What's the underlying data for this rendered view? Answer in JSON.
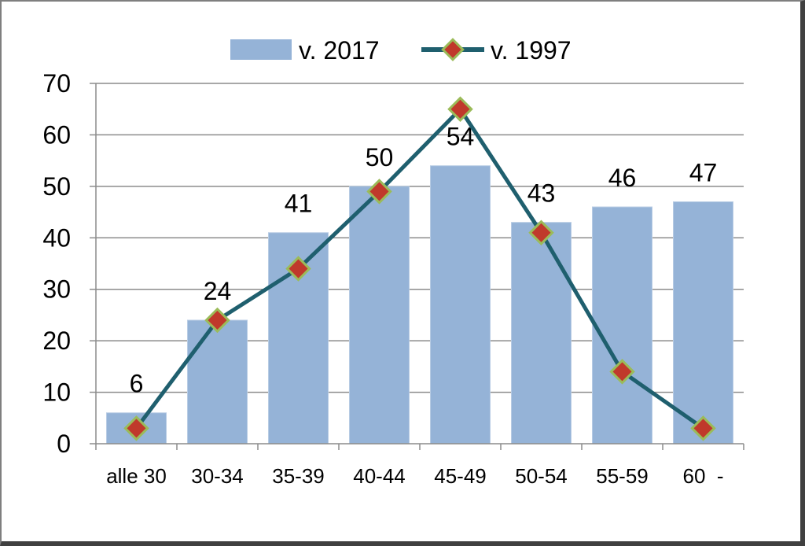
{
  "chart_data": {
    "type": "bar",
    "categories": [
      "alle 30",
      "30-34",
      "35-39",
      "40-44",
      "45-49",
      "50-54",
      "55-59",
      "60  -"
    ],
    "series": [
      {
        "name": "v. 2017",
        "type": "bar",
        "values": [
          6,
          24,
          41,
          50,
          54,
          43,
          46,
          47
        ],
        "data_labels": [
          "6",
          "24",
          "41",
          "50",
          "54",
          "43",
          "46",
          "47"
        ],
        "color": "#95b3d7"
      },
      {
        "name": "v. 1997",
        "type": "line",
        "values": [
          3,
          24,
          34,
          49,
          65,
          41,
          14,
          3
        ],
        "color": "#1f5f6e",
        "marker_fill": "#c0392b",
        "marker_edge": "#9bbb59"
      }
    ],
    "ylim": [
      0,
      70
    ],
    "yticks": [
      0,
      10,
      20,
      30,
      40,
      50,
      60,
      70
    ],
    "grid": true,
    "legend": "top-center"
  }
}
